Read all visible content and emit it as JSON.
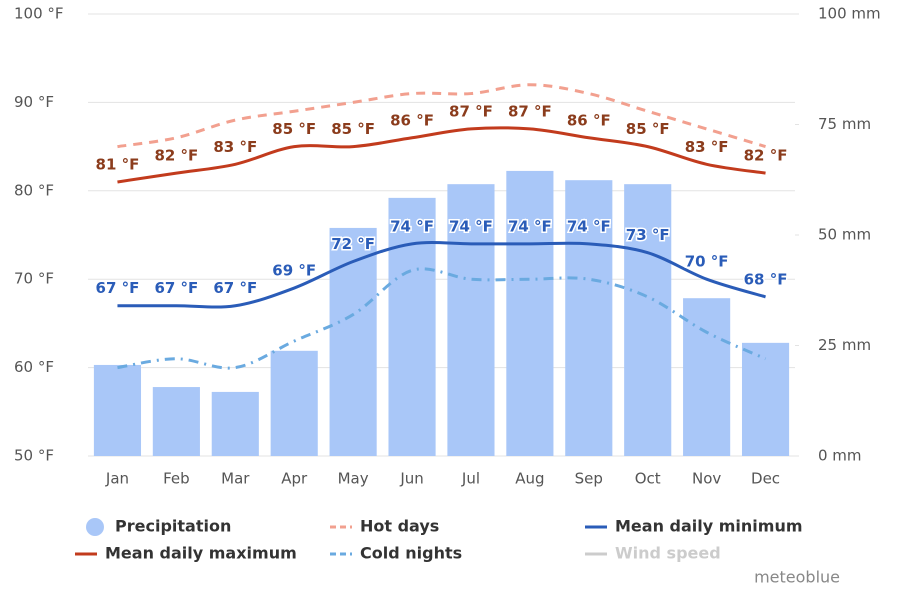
{
  "chart_data": {
    "type": "combo",
    "categories": [
      "Jan",
      "Feb",
      "Mar",
      "Apr",
      "May",
      "Jun",
      "Jul",
      "Aug",
      "Sep",
      "Oct",
      "Nov",
      "Dec"
    ],
    "ylim": [
      50,
      100
    ],
    "yticks": [
      {
        "value": 50,
        "label": "50 °F"
      },
      {
        "value": 60,
        "label": "60 °F"
      },
      {
        "value": 70,
        "label": "70 °F"
      },
      {
        "value": 80,
        "label": "80 °F"
      },
      {
        "value": 90,
        "label": "90 °F"
      },
      {
        "value": 100,
        "label": "100 °F"
      }
    ],
    "y2lim": [
      0,
      100
    ],
    "y2ticks": [
      {
        "value": 0,
        "label": "0 mm"
      },
      {
        "value": 25,
        "label": "25 mm"
      },
      {
        "value": 50,
        "label": "50 mm"
      },
      {
        "value": 75,
        "label": "75 mm"
      },
      {
        "value": 100,
        "label": "100 mm"
      }
    ],
    "grid": true,
    "series": [
      {
        "name": "Precipitation",
        "type": "bar",
        "axis": "y2",
        "color": "#a9c7f8",
        "values": [
          20.6,
          15.6,
          14.5,
          23.8,
          51.6,
          58.4,
          61.5,
          64.5,
          62.4,
          61.5,
          35.7,
          25.6
        ]
      },
      {
        "name": "Mean daily maximum",
        "type": "line",
        "color": "#c23b1d",
        "label_color": "#8b3c1c",
        "values": [
          81,
          82,
          83,
          85,
          85,
          86,
          87,
          87,
          86,
          85,
          83,
          82
        ],
        "value_labels": [
          "81 °F",
          "82 °F",
          "83 °F",
          "85 °F",
          "85 °F",
          "86 °F",
          "87 °F",
          "87 °F",
          "86 °F",
          "85 °F",
          "83 °F",
          "82 °F"
        ]
      },
      {
        "name": "Hot days",
        "type": "line",
        "dash": "dashed",
        "color": "#f2a08f",
        "values": [
          85,
          86,
          88,
          89,
          90,
          91,
          91,
          92,
          91,
          89,
          87,
          85
        ]
      },
      {
        "name": "Mean daily minimum",
        "type": "line",
        "color": "#2a5cb8",
        "label_color": "#2a5cb8",
        "values": [
          67,
          67,
          67,
          69,
          72,
          74,
          74,
          74,
          74,
          73,
          70,
          68
        ],
        "value_labels": [
          "67 °F",
          "67 °F",
          "67 °F",
          "69 °F",
          "72 °F",
          "74 °F",
          "74 °F",
          "74 °F",
          "74 °F",
          "73 °F",
          "70 °F",
          "68 °F"
        ]
      },
      {
        "name": "Cold nights",
        "type": "line",
        "dash": "dashdot",
        "color": "#6aaae0",
        "values": [
          60,
          61,
          60,
          63,
          66,
          71,
          70,
          70,
          70,
          68,
          64,
          61
        ]
      },
      {
        "name": "Wind speed",
        "type": "line",
        "color": "#cccccc",
        "visible": false
      }
    ],
    "credit": "meteoblue"
  }
}
